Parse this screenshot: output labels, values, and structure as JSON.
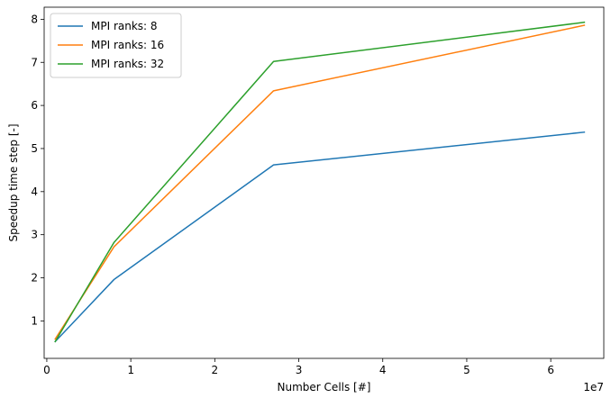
{
  "chart_data": {
    "type": "line",
    "xlabel": "Number Cells [#]",
    "ylabel": "Speedup time step [-]",
    "x_offset_label": "1e7",
    "xlim": [
      -0.0315,
      6.6315
    ],
    "ylim": [
      0.13,
      8.28
    ],
    "x_ticks": [
      0,
      1,
      2,
      3,
      4,
      5,
      6
    ],
    "x_tick_labels": [
      "0",
      "1",
      "2",
      "3",
      "4",
      "5",
      "6"
    ],
    "y_ticks": [
      1,
      2,
      3,
      4,
      5,
      6,
      7,
      8
    ],
    "y_tick_labels": [
      "1",
      "2",
      "3",
      "4",
      "5",
      "6",
      "7",
      "8"
    ],
    "legend_position": "upper-left",
    "grid": false,
    "x": [
      0.1,
      0.8,
      2.7,
      6.4
    ],
    "series": [
      {
        "name": "MPI ranks: 8",
        "color": "#1f77b4",
        "values": [
          0.52,
          1.96,
          4.62,
          5.38
        ]
      },
      {
        "name": "MPI ranks: 16",
        "color": "#ff7f0e",
        "values": [
          0.58,
          2.72,
          6.34,
          7.86
        ]
      },
      {
        "name": "MPI ranks: 32",
        "color": "#2ca02c",
        "values": [
          0.52,
          2.82,
          7.02,
          7.93
        ]
      }
    ]
  }
}
